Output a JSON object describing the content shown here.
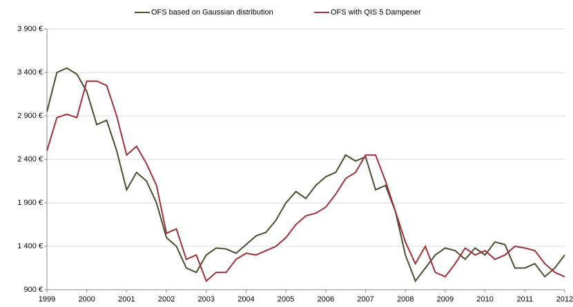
{
  "chart_data": {
    "type": "line",
    "x": [
      1999,
      1999.25,
      1999.5,
      1999.75,
      2000,
      2000.25,
      2000.5,
      2000.75,
      2001,
      2001.25,
      2001.5,
      2001.75,
      2002,
      2002.25,
      2002.5,
      2002.75,
      2003,
      2003.25,
      2003.5,
      2003.75,
      2004,
      2004.25,
      2004.5,
      2004.75,
      2005,
      2005.25,
      2005.5,
      2005.75,
      2006,
      2006.25,
      2006.5,
      2006.75,
      2007,
      2007.25,
      2007.5,
      2007.75,
      2008,
      2008.25,
      2008.5,
      2008.75,
      2009,
      2009.25,
      2009.5,
      2009.75,
      2010,
      2010.25,
      2010.5,
      2010.75,
      2011,
      2011.25,
      2011.5,
      2011.75,
      2012
    ],
    "series": [
      {
        "name": "OFS based on Gaussian distribution",
        "color": "#4b4a2c",
        "values": [
          2950,
          3400,
          3450,
          3380,
          3180,
          2800,
          2850,
          2500,
          2050,
          2250,
          2150,
          1900,
          1500,
          1400,
          1150,
          1100,
          1300,
          1380,
          1370,
          1320,
          1420,
          1520,
          1560,
          1700,
          1900,
          2030,
          1950,
          2100,
          2200,
          2250,
          2450,
          2380,
          2430,
          2050,
          2100,
          1800,
          1300,
          1000,
          1150,
          1300,
          1380,
          1350,
          1250,
          1380,
          1300,
          1450,
          1420,
          1150,
          1150,
          1200,
          1050,
          1150,
          1300
        ]
      },
      {
        "name": "OFS with QIS 5 Dampener",
        "color": "#9b3038",
        "values": [
          2500,
          2880,
          2920,
          2880,
          3300,
          3300,
          3250,
          2900,
          2450,
          2550,
          2350,
          2100,
          1550,
          1600,
          1250,
          1300,
          1000,
          1100,
          1100,
          1250,
          1320,
          1300,
          1350,
          1400,
          1500,
          1650,
          1750,
          1780,
          1850,
          2000,
          2180,
          2250,
          2450,
          2450,
          2150,
          1800,
          1450,
          1200,
          1400,
          1100,
          1050,
          1200,
          1380,
          1300,
          1350,
          1250,
          1300,
          1400,
          1380,
          1350,
          1200,
          1100,
          1050
        ]
      }
    ],
    "xlim": [
      1999,
      2012
    ],
    "xticks": [
      1999,
      2000,
      2001,
      2002,
      2003,
      2004,
      2005,
      2006,
      2007,
      2008,
      2009,
      2010,
      2011,
      2012
    ],
    "ylim": [
      900,
      3900
    ],
    "yticks": [
      {
        "value": 900,
        "label": "900 €"
      },
      {
        "value": 1400,
        "label": "1 400 €"
      },
      {
        "value": 1900,
        "label": "1 900 €"
      },
      {
        "value": 2400,
        "label": "2 400 €"
      },
      {
        "value": 2900,
        "label": "2 900 €"
      },
      {
        "value": 3400,
        "label": "3 400 €"
      },
      {
        "value": 3900,
        "label": "3 900 €"
      }
    ],
    "grid": true
  }
}
